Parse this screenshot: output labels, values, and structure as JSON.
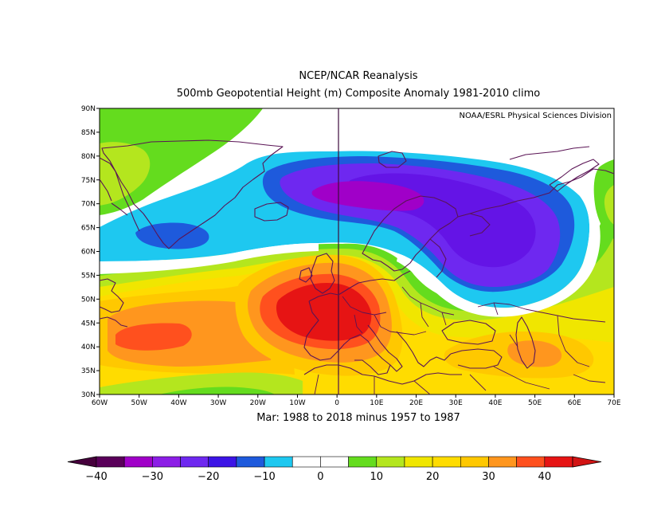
{
  "title": {
    "line1": "NCEP/NCAR Reanalysis",
    "line2": "500mb Geopotential Height (m) Composite Anomaly 1981-2010 climo"
  },
  "credit": "NOAA/ESRL Physical Sciences Division",
  "subtitle": "Mar: 1988 to 2018 minus 1957 to 1987",
  "map": {
    "lat_labels": [
      "90N",
      "85N",
      "80N",
      "75N",
      "70N",
      "65N",
      "60N",
      "55N",
      "50N",
      "45N",
      "40N",
      "35N",
      "30N"
    ],
    "lon_labels": [
      "60W",
      "50W",
      "40W",
      "30W",
      "20W",
      "10W",
      "0",
      "10E",
      "20E",
      "30E",
      "40E",
      "50E",
      "60E",
      "70E"
    ],
    "features": [
      "greenland-positive-anomaly",
      "greenland-iceland-negative-anomaly",
      "scandinavia-russia-negative-anomaly",
      "central-europe-positive-anomaly",
      "atlantic-positive-anomaly"
    ]
  },
  "colorbar": {
    "labels": [
      "-40",
      "-30",
      "-20",
      "-10",
      "0",
      "10",
      "20",
      "30",
      "40"
    ],
    "colors": [
      "#5a005a",
      "#a000c8",
      "#8c1ee6",
      "#6e28f0",
      "#3c14e6",
      "#1e5adc",
      "#1ec8f0",
      "#ffffff",
      "#ffffff",
      "#64dc1e",
      "#b4e61e",
      "#f0e600",
      "#ffdc00",
      "#ffc800",
      "#ff961e",
      "#ff501e",
      "#e61414"
    ],
    "min_color": "#46003c",
    "max_color": "#d21414"
  },
  "palette": {
    "neg_cyan": "#1ec8f0",
    "neg_blue": "#1e5adc",
    "neg_violet": "#6e28f0",
    "neg_purple": "#a000c8",
    "pos_green": "#64dc1e",
    "pos_lime": "#b4e61e",
    "pos_yellow": "#f0e600",
    "pos_gold": "#ffc800",
    "pos_orange": "#ff961e",
    "pos_redorange": "#ff501e",
    "pos_red": "#e61414",
    "coast": "#5a1455"
  }
}
